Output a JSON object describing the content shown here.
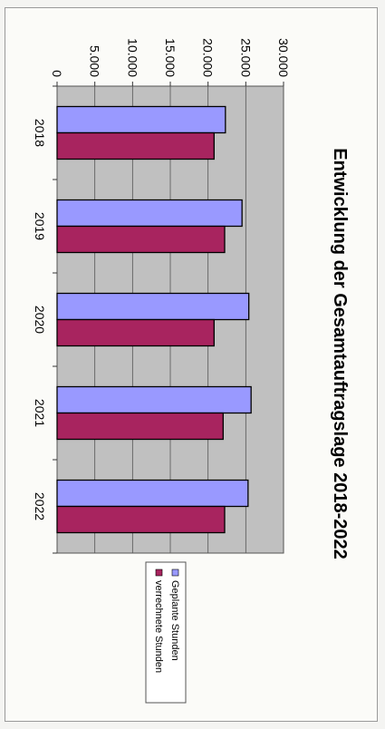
{
  "chart_data": {
    "type": "bar",
    "orientation": "rotated-90-clockwise",
    "title": "Entwicklung der Gesamtauftragslage 2018-2022",
    "categories": [
      "2018",
      "2019",
      "2020",
      "2021",
      "2022"
    ],
    "ylim": [
      0,
      30000
    ],
    "yticks": [
      0,
      5000,
      10000,
      15000,
      20000,
      25000,
      30000
    ],
    "ytick_labels": [
      "0",
      "5.000",
      "10.000",
      "15.000",
      "20.000",
      "25.000",
      "30.000"
    ],
    "grid": true,
    "legend_position": "right",
    "series": [
      {
        "name": "Geplante Stunden",
        "values": [
          22300,
          24500,
          25400,
          25700,
          25300
        ],
        "color": "#9999ff"
      },
      {
        "name": "verrechnete Stunden",
        "values": [
          20800,
          22200,
          20800,
          22000,
          22200
        ],
        "color": "#a8245f"
      }
    ],
    "plot_area_color": "#c0c0c0"
  }
}
